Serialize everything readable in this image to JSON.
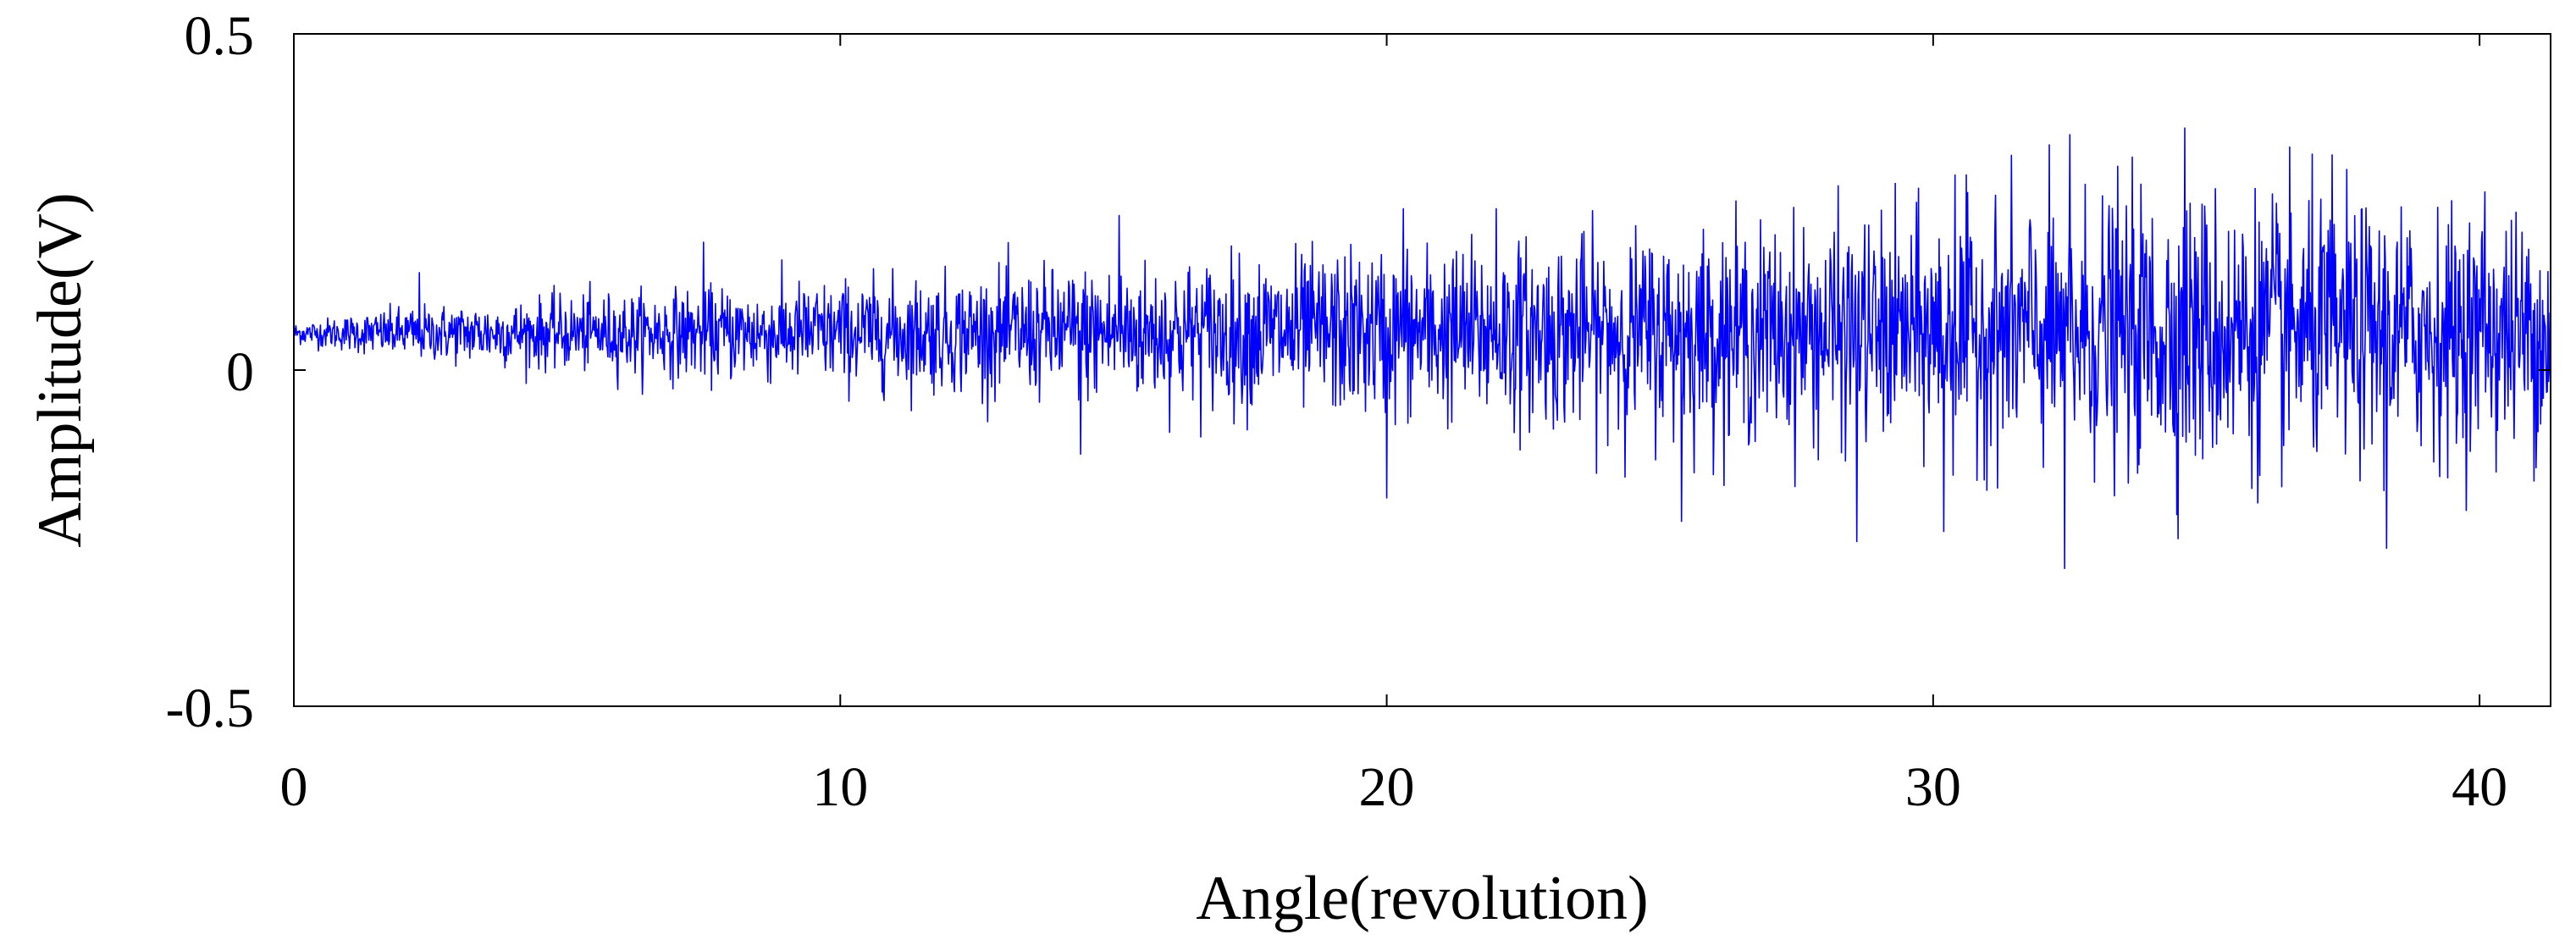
{
  "chart_data": {
    "type": "line",
    "title": "",
    "xlabel": "Angle(revolution)",
    "ylabel": "Amplitude(V)",
    "xlim": [
      0,
      41.3
    ],
    "ylim": [
      -0.5,
      0.5
    ],
    "xticks": [
      0,
      10,
      20,
      30,
      40
    ],
    "xtick_labels": [
      "0",
      "10",
      "20",
      "30",
      "40"
    ],
    "yticks": [
      -0.5,
      0,
      0.5
    ],
    "ytick_labels": [
      "-0.5",
      "0",
      "0.5"
    ],
    "grid": false,
    "legend": "none",
    "series": [
      {
        "color": "#0000ff",
        "baseline": 0.055,
        "envelope": {
          "x": [
            0,
            2,
            5,
            8,
            12,
            15,
            20,
            25,
            30,
            33,
            35,
            38,
            41.3
          ],
          "amplitude": [
            0.02,
            0.05,
            0.07,
            0.09,
            0.11,
            0.13,
            0.16,
            0.19,
            0.22,
            0.26,
            0.27,
            0.24,
            0.22
          ]
        },
        "peaks": [
          {
            "x": 2.3,
            "y": 0.145
          },
          {
            "x": 7.5,
            "y": 0.19
          },
          {
            "x": 15.1,
            "y": 0.23
          },
          {
            "x": 20.3,
            "y": 0.24
          },
          {
            "x": 22.0,
            "y": 0.24
          },
          {
            "x": 30.4,
            "y": 0.29
          },
          {
            "x": 32.5,
            "y": 0.35
          },
          {
            "x": 34.6,
            "y": 0.36
          },
          {
            "x": 37.3,
            "y": 0.32
          },
          {
            "x": 40.1,
            "y": 0.265
          },
          {
            "x": 14.4,
            "y": -0.125
          },
          {
            "x": 20.0,
            "y": -0.19
          },
          {
            "x": 25.4,
            "y": -0.225
          },
          {
            "x": 28.6,
            "y": -0.255
          },
          {
            "x": 30.2,
            "y": -0.24
          },
          {
            "x": 32.4,
            "y": -0.295
          },
          {
            "x": 38.3,
            "y": -0.265
          },
          {
            "x": 41.0,
            "y": -0.165
          }
        ]
      }
    ]
  }
}
